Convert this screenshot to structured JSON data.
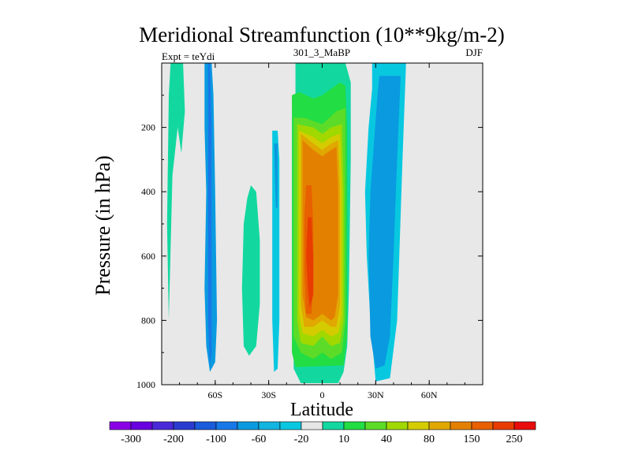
{
  "chart_data": {
    "type": "contour",
    "title": "Meridional Streamfunction (10**9kg/m-2)",
    "experiment_label": "Expt = teYdi",
    "subtitle": "301_3_MaBP",
    "season": "DJF",
    "xlabel": "Latitude",
    "ylabel": "Pressure (in hPa)",
    "xlim": [
      -90,
      90
    ],
    "ylim": [
      1000,
      0
    ],
    "x_ticks": [
      {
        "value": -60,
        "label": "60S"
      },
      {
        "value": -30,
        "label": "30S"
      },
      {
        "value": 0,
        "label": "0"
      },
      {
        "value": 30,
        "label": "30N"
      },
      {
        "value": 60,
        "label": "60N"
      }
    ],
    "y_ticks": [
      {
        "value": 200,
        "label": "200"
      },
      {
        "value": 400,
        "label": "400"
      },
      {
        "value": 600,
        "label": "600"
      },
      {
        "value": 800,
        "label": "800"
      },
      {
        "value": 1000,
        "label": "1000"
      }
    ],
    "background_color": "#e8e8e8",
    "colorbar": {
      "colors": [
        "#8a00e6",
        "#6a00e0",
        "#4a2ad8",
        "#2a3cd0",
        "#1a5cdb",
        "#1878e8",
        "#0a9ae0",
        "#12b4e0",
        "#08c8e0",
        "#e6e6e6",
        "#12d8a0",
        "#22dd44",
        "#5cdc28",
        "#a0d800",
        "#d4cc00",
        "#e0a800",
        "#e48000",
        "#e86000",
        "#e83c00",
        "#e80c0c"
      ],
      "labels": [
        {
          "after_box": 0,
          "label": "-300"
        },
        {
          "after_box": 2,
          "label": "-200"
        },
        {
          "after_box": 4,
          "label": "-100"
        },
        {
          "after_box": 6,
          "label": "-60"
        },
        {
          "after_box": 8,
          "label": "-20"
        },
        {
          "after_box": 10,
          "label": "10"
        },
        {
          "after_box": 12,
          "label": "40"
        },
        {
          "after_box": 14,
          "label": "80"
        },
        {
          "after_box": 16,
          "label": "150"
        },
        {
          "after_box": 18,
          "label": "250"
        }
      ]
    },
    "regions": [
      {
        "name": "sh-polar-green",
        "color": "#12d8a0",
        "points": [
          [
            -85,
            0
          ],
          [
            -78,
            0
          ],
          [
            -77,
            150
          ],
          [
            -79,
            280
          ],
          [
            -81,
            200
          ],
          [
            -84,
            350
          ],
          [
            -86,
            800
          ],
          [
            -87,
            500
          ],
          [
            -86,
            100
          ]
        ]
      },
      {
        "name": "sh-blue-60s",
        "color": "#0a9ae0",
        "points": [
          [
            -66,
            0
          ],
          [
            -62,
            0
          ],
          [
            -61,
            100
          ],
          [
            -60,
            400
          ],
          [
            -59,
            800
          ],
          [
            -60,
            930
          ],
          [
            -63,
            960
          ],
          [
            -65,
            880
          ],
          [
            -66,
            700
          ],
          [
            -65,
            400
          ],
          [
            -66,
            200
          ]
        ]
      },
      {
        "name": "sh-blue-60s-inner",
        "color": "#1878e8",
        "points": [
          [
            -64,
            0
          ],
          [
            -63,
            0
          ],
          [
            -62,
            200
          ],
          [
            -62,
            700
          ],
          [
            -62,
            900
          ],
          [
            -63,
            940
          ],
          [
            -64,
            800
          ],
          [
            -64,
            300
          ]
        ]
      },
      {
        "name": "sh-green-40s",
        "color": "#12d8a0",
        "points": [
          [
            -40,
            380
          ],
          [
            -37,
            400
          ],
          [
            -35,
            550
          ],
          [
            -35,
            750
          ],
          [
            -37,
            880
          ],
          [
            -41,
            910
          ],
          [
            -44,
            880
          ],
          [
            -45,
            700
          ],
          [
            -44,
            500
          ],
          [
            -42,
            420
          ]
        ]
      },
      {
        "name": "sh-blue-25s",
        "color": "#08c8e0",
        "points": [
          [
            -28,
            210
          ],
          [
            -25,
            210
          ],
          [
            -24,
            300
          ],
          [
            -24,
            500
          ],
          [
            -24,
            800
          ],
          [
            -25,
            950
          ],
          [
            -27,
            960
          ],
          [
            -28,
            800
          ],
          [
            -28,
            500
          ],
          [
            -28,
            300
          ]
        ]
      },
      {
        "name": "sh-blue-25s-inner",
        "color": "#0a9ae0",
        "points": [
          [
            -27,
            250
          ],
          [
            -25,
            250
          ],
          [
            -25,
            450
          ],
          [
            -26,
            450
          ]
        ]
      },
      {
        "name": "hadley-green",
        "color": "#12d8a0",
        "points": [
          [
            -15,
            0
          ],
          [
            13,
            0
          ],
          [
            16,
            60
          ],
          [
            16,
            300
          ],
          [
            15,
            700
          ],
          [
            14,
            880
          ],
          [
            12,
            960
          ],
          [
            9,
            995
          ],
          [
            0,
            995
          ],
          [
            -12,
            995
          ],
          [
            -16,
            950
          ],
          [
            -16,
            700
          ],
          [
            -16,
            400
          ],
          [
            -15,
            200
          ]
        ]
      },
      {
        "name": "hadley-lime",
        "color": "#22dd44",
        "points": [
          [
            -17,
            100
          ],
          [
            -13,
            90
          ],
          [
            -5,
            110
          ],
          [
            0,
            100
          ],
          [
            5,
            80
          ],
          [
            10,
            60
          ],
          [
            13,
            70
          ],
          [
            14,
            200
          ],
          [
            14,
            600
          ],
          [
            14,
            850
          ],
          [
            12,
            940
          ],
          [
            -15,
            945
          ],
          [
            -17,
            900
          ],
          [
            -17,
            500
          ],
          [
            -17,
            200
          ]
        ]
      },
      {
        "name": "hadley-ygreen",
        "color": "#5cdc28",
        "points": [
          [
            -16,
            170
          ],
          [
            -10,
            170
          ],
          [
            0,
            190
          ],
          [
            8,
            150
          ],
          [
            13,
            140
          ],
          [
            13,
            400
          ],
          [
            13,
            800
          ],
          [
            11,
            900
          ],
          [
            5,
            920
          ],
          [
            0,
            900
          ],
          [
            -5,
            920
          ],
          [
            -12,
            900
          ],
          [
            -16,
            850
          ],
          [
            -16,
            500
          ]
        ]
      },
      {
        "name": "hadley-yellow",
        "color": "#a0d800",
        "points": [
          [
            -14,
            190
          ],
          [
            -5,
            200
          ],
          [
            0,
            220
          ],
          [
            5,
            200
          ],
          [
            11,
            190
          ],
          [
            12,
            400
          ],
          [
            12,
            800
          ],
          [
            10,
            870
          ],
          [
            5,
            880
          ],
          [
            0,
            850
          ],
          [
            -5,
            880
          ],
          [
            -12,
            870
          ],
          [
            -14,
            800
          ],
          [
            -14,
            400
          ]
        ]
      },
      {
        "name": "hadley-gold",
        "color": "#d4cc00",
        "points": [
          [
            -13,
            210
          ],
          [
            -5,
            230
          ],
          [
            0,
            250
          ],
          [
            5,
            230
          ],
          [
            10,
            220
          ],
          [
            11,
            400
          ],
          [
            11,
            780
          ],
          [
            9,
            840
          ],
          [
            5,
            850
          ],
          [
            0,
            830
          ],
          [
            -5,
            850
          ],
          [
            -11,
            840
          ],
          [
            -13,
            780
          ],
          [
            -13,
            400
          ]
        ]
      },
      {
        "name": "hadley-amber",
        "color": "#e0a800",
        "points": [
          [
            -12,
            220
          ],
          [
            -5,
            250
          ],
          [
            0,
            270
          ],
          [
            5,
            250
          ],
          [
            9,
            240
          ],
          [
            10,
            400
          ],
          [
            10,
            750
          ],
          [
            8,
            820
          ],
          [
            5,
            820
          ],
          [
            0,
            800
          ],
          [
            -5,
            820
          ],
          [
            -10,
            820
          ],
          [
            -12,
            750
          ],
          [
            -12,
            400
          ]
        ]
      },
      {
        "name": "hadley-orange",
        "color": "#e48000",
        "points": [
          [
            -11,
            240
          ],
          [
            -5,
            270
          ],
          [
            0,
            290
          ],
          [
            5,
            270
          ],
          [
            8,
            260
          ],
          [
            9,
            400
          ],
          [
            9,
            720
          ],
          [
            7,
            790
          ],
          [
            5,
            800
          ],
          [
            0,
            780
          ],
          [
            -5,
            800
          ],
          [
            -9,
            790
          ],
          [
            -11,
            720
          ],
          [
            -11,
            400
          ]
        ]
      },
      {
        "name": "hadley-core",
        "color": "#e86000",
        "points": [
          [
            -9,
            380
          ],
          [
            -6,
            380
          ],
          [
            -5,
            500
          ],
          [
            -5,
            700
          ],
          [
            -6,
            780
          ],
          [
            -9,
            780
          ],
          [
            -10,
            650
          ],
          [
            -10,
            480
          ]
        ]
      },
      {
        "name": "hadley-core-n",
        "color": "#e48000",
        "points": [
          [
            4,
            300
          ],
          [
            6,
            300
          ],
          [
            7,
            450
          ],
          [
            6,
            600
          ],
          [
            4,
            600
          ],
          [
            3,
            450
          ]
        ]
      },
      {
        "name": "hadley-center",
        "color": "#e83c00",
        "points": [
          [
            -8,
            480
          ],
          [
            -6,
            480
          ],
          [
            -5,
            600
          ],
          [
            -5,
            720
          ],
          [
            -7,
            760
          ],
          [
            -8,
            700
          ],
          [
            -9,
            600
          ]
        ]
      },
      {
        "name": "nh-blue-outer",
        "color": "#08c8e0",
        "points": [
          [
            28,
            0
          ],
          [
            47,
            0
          ],
          [
            45,
            300
          ],
          [
            42,
            800
          ],
          [
            38,
            980
          ],
          [
            30,
            990
          ],
          [
            27,
            800
          ],
          [
            25,
            600
          ],
          [
            24,
            400
          ],
          [
            26,
            200
          ],
          [
            28,
            80
          ]
        ]
      },
      {
        "name": "nh-blue-inner",
        "color": "#0a9ae0",
        "points": [
          [
            32,
            40
          ],
          [
            44,
            40
          ],
          [
            42,
            300
          ],
          [
            40,
            600
          ],
          [
            38,
            850
          ],
          [
            35,
            940
          ],
          [
            30,
            950
          ],
          [
            27,
            850
          ],
          [
            26,
            600
          ],
          [
            27,
            400
          ],
          [
            29,
            250
          ],
          [
            31,
            100
          ]
        ]
      }
    ]
  }
}
